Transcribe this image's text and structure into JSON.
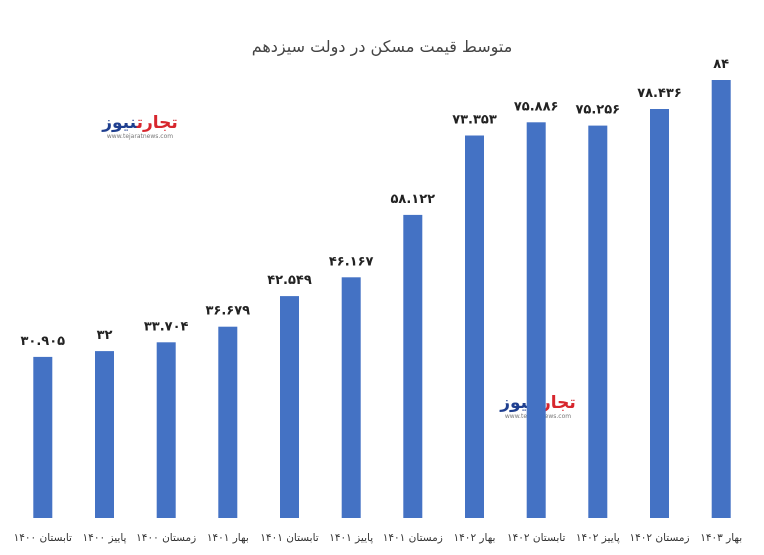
{
  "chart_data": {
    "type": "bar",
    "title": "متوسط قیمت مسکن در دولت سیزدهم",
    "xlabel": "",
    "ylabel": "",
    "categories": [
      "تابستان ۱۴۰۰",
      "پاییز ۱۴۰۰",
      "زمستان ۱۴۰۰",
      "بهار ۱۴۰۱",
      "تابستان ۱۴۰۱",
      "پاییز ۱۴۰۱",
      "زمستان ۱۴۰۱",
      "بهار ۱۴۰۲",
      "تابستان ۱۴۰۲",
      "پاییز ۱۴۰۲",
      "زمستان ۱۴۰۲",
      "بهار ۱۴۰۳"
    ],
    "values": [
      30.905,
      32,
      33.704,
      36.679,
      42.549,
      46.167,
      58.122,
      73.353,
      75.886,
      75.256,
      78.436,
      84
    ],
    "value_labels": [
      "۳۰.۹۰۵",
      "۳۲",
      "۳۳.۷۰۴",
      "۳۶.۶۷۹",
      "۴۲.۵۴۹",
      "۴۶.۱۶۷",
      "۵۸.۱۲۲",
      "۷۳.۳۵۳",
      "۷۵.۸۸۶",
      "۷۵.۲۵۶",
      "۷۸.۴۳۶",
      "۸۴"
    ],
    "ylim": [
      0,
      84
    ],
    "grid": false,
    "bar_color": "#4472c4"
  },
  "watermark": {
    "brand_red": "تجارت",
    "brand_blue": "نیوز",
    "site": "www.tejaratnews.com",
    "red_color": "#d7262d",
    "blue_color": "#1f3f8f"
  }
}
